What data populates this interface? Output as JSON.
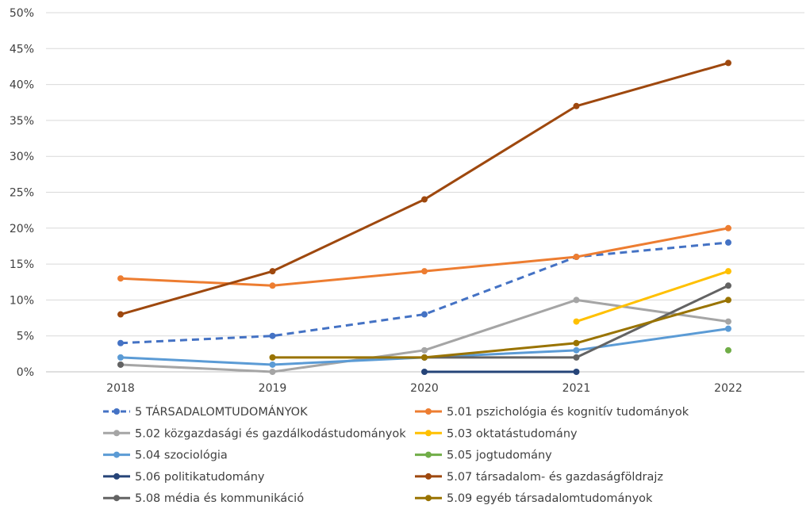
{
  "chart_data": {
    "type": "line",
    "title": "",
    "xlabel": "",
    "ylabel": "",
    "categories": [
      "2018",
      "2019",
      "2020",
      "2021",
      "2022"
    ],
    "ylim": [
      0,
      50
    ],
    "yticks": [
      "0%",
      "5%",
      "10%",
      "15%",
      "20%",
      "25%",
      "30%",
      "35%",
      "40%",
      "45%",
      "50%"
    ],
    "grid": "horizontal",
    "legend_position": "bottom",
    "series": [
      {
        "name": "5 TÁRSADALOMTUDOMÁNYOK",
        "color": "#4472C4",
        "dashed": true,
        "values": [
          4,
          5,
          8,
          16,
          18
        ]
      },
      {
        "name": "5.01 pszichológia és kognitív tudományok",
        "color": "#ED7D31",
        "dashed": false,
        "values": [
          13,
          12,
          14,
          16,
          20
        ]
      },
      {
        "name": "5.02 közgazdasági és gazdálkodástudományok",
        "color": "#A5A5A5",
        "dashed": false,
        "values": [
          1,
          0,
          3,
          10,
          7
        ]
      },
      {
        "name": "5.03 oktatástudomány",
        "color": "#FFC000",
        "dashed": false,
        "values": [
          null,
          null,
          null,
          7,
          14
        ]
      },
      {
        "name": "5.04 szociológia",
        "color": "#5B9BD5",
        "dashed": false,
        "values": [
          2,
          1,
          2,
          3,
          6
        ]
      },
      {
        "name": "5.05 jogtudomány",
        "color": "#70AD47",
        "dashed": false,
        "values": [
          null,
          null,
          null,
          null,
          3
        ]
      },
      {
        "name": "5.06 politikatudomány",
        "color": "#264478",
        "dashed": false,
        "values": [
          null,
          null,
          0,
          0,
          null
        ]
      },
      {
        "name": "5.07 társadalom- és gazdaságföldrajz",
        "color": "#9E480E",
        "dashed": false,
        "values": [
          8,
          14,
          24,
          37,
          43
        ]
      },
      {
        "name": "5.08 média és kommunikáció",
        "color": "#636363",
        "dashed": false,
        "values": [
          1,
          null,
          2,
          2,
          12
        ]
      },
      {
        "name": "5.09 egyéb társadalomtudományok",
        "color": "#997300",
        "dashed": false,
        "values": [
          null,
          2,
          2,
          4,
          10
        ]
      }
    ]
  }
}
